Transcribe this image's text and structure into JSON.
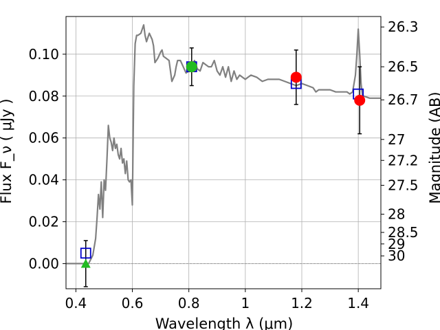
{
  "chart_data": {
    "type": "line",
    "xlabel": "Wavelength  λ (μm)",
    "ylabel": "Flux  F_ν  ( μJy )",
    "ylabel_right": "Magnitude (AB)",
    "xlim": [
      0.365,
      1.48
    ],
    "ylim": [
      -0.012,
      0.118
    ],
    "grid": true,
    "x_ticks": [
      0.4,
      0.6,
      0.8,
      1.0,
      1.2,
      1.4
    ],
    "x_tick_labels": [
      "0.4",
      "0.6",
      "0.8",
      "1",
      "1.2",
      "1.4"
    ],
    "y_ticks": [
      0.0,
      0.02,
      0.04,
      0.06,
      0.08,
      0.1
    ],
    "y_tick_labels": [
      "0.00",
      "0.02",
      "0.04",
      "0.06",
      "0.08",
      "0.10"
    ],
    "right_ticks": [
      {
        "label": "26.3",
        "flux": 0.113
      },
      {
        "label": "26.5",
        "flux": 0.094
      },
      {
        "label": "26.7",
        "flux": 0.0782
      },
      {
        "label": "27",
        "flux": 0.0593
      },
      {
        "label": "27.2",
        "flux": 0.0493
      },
      {
        "label": "27.5",
        "flux": 0.0374
      },
      {
        "label": "28",
        "flux": 0.0236
      },
      {
        "label": "28.5",
        "flux": 0.0149
      },
      {
        "label": "29",
        "flux": 0.0094
      },
      {
        "label": "30",
        "flux": 0.0037
      }
    ],
    "series": [
      {
        "kind": "spectrum",
        "color": "#808080",
        "x": [
          0.365,
          0.43,
          0.445,
          0.46,
          0.47,
          0.475,
          0.48,
          0.485,
          0.49,
          0.495,
          0.5,
          0.505,
          0.51,
          0.515,
          0.52,
          0.525,
          0.53,
          0.535,
          0.54,
          0.545,
          0.55,
          0.555,
          0.56,
          0.565,
          0.57,
          0.575,
          0.58,
          0.585,
          0.59,
          0.595,
          0.6,
          0.605,
          0.61,
          0.615,
          0.62,
          0.63,
          0.64,
          0.645,
          0.65,
          0.655,
          0.66,
          0.67,
          0.675,
          0.68,
          0.69,
          0.7,
          0.705,
          0.71,
          0.72,
          0.73,
          0.74,
          0.75,
          0.755,
          0.76,
          0.77,
          0.78,
          0.79,
          0.8,
          0.81,
          0.82,
          0.83,
          0.84,
          0.85,
          0.86,
          0.87,
          0.88,
          0.89,
          0.9,
          0.91,
          0.92,
          0.93,
          0.94,
          0.95,
          0.96,
          0.97,
          0.98,
          0.99,
          1.0,
          1.01,
          1.02,
          1.04,
          1.06,
          1.08,
          1.1,
          1.12,
          1.14,
          1.16,
          1.18,
          1.2,
          1.22,
          1.24,
          1.25,
          1.26,
          1.28,
          1.3,
          1.32,
          1.34,
          1.36,
          1.37,
          1.38,
          1.39,
          1.395,
          1.4,
          1.405,
          1.41,
          1.415,
          1.42,
          1.44,
          1.46,
          1.48
        ],
        "y": [
          0.0,
          0.0,
          0.0,
          0.004,
          0.012,
          0.022,
          0.033,
          0.026,
          0.039,
          0.022,
          0.04,
          0.035,
          0.05,
          0.066,
          0.06,
          0.058,
          0.054,
          0.06,
          0.055,
          0.057,
          0.052,
          0.05,
          0.055,
          0.048,
          0.05,
          0.043,
          0.049,
          0.04,
          0.039,
          0.04,
          0.028,
          0.085,
          0.105,
          0.109,
          0.109,
          0.11,
          0.114,
          0.109,
          0.106,
          0.108,
          0.11,
          0.107,
          0.104,
          0.096,
          0.098,
          0.101,
          0.102,
          0.099,
          0.098,
          0.097,
          0.087,
          0.09,
          0.094,
          0.097,
          0.097,
          0.094,
          0.091,
          0.092,
          0.094,
          0.097,
          0.093,
          0.092,
          0.096,
          0.095,
          0.094,
          0.094,
          0.097,
          0.092,
          0.09,
          0.094,
          0.089,
          0.094,
          0.087,
          0.092,
          0.088,
          0.09,
          0.089,
          0.088,
          0.089,
          0.09,
          0.089,
          0.087,
          0.088,
          0.088,
          0.088,
          0.087,
          0.086,
          0.085,
          0.086,
          0.085,
          0.084,
          0.082,
          0.083,
          0.083,
          0.083,
          0.082,
          0.082,
          0.082,
          0.081,
          0.082,
          0.09,
          0.1,
          0.112,
          0.1,
          0.086,
          0.08,
          0.08,
          0.079,
          0.079,
          0.079
        ]
      },
      {
        "kind": "model-photometry",
        "marker": "open-square",
        "color": "#0000cc",
        "x": [
          0.435,
          0.81,
          1.18,
          1.4
        ],
        "y": [
          0.005,
          0.094,
          0.086,
          0.081
        ]
      },
      {
        "kind": "observed",
        "marker": "filled-circle",
        "color": "#ff0000",
        "x": [
          0.81,
          1.18,
          1.405
        ],
        "y": [
          0.094,
          0.089,
          0.078
        ],
        "err": [
          0.009,
          0.013,
          0.016
        ]
      },
      {
        "kind": "observed-highlight",
        "marker": "filled-circle",
        "color": "#22bb22",
        "x": [
          0.81
        ],
        "y": [
          0.094
        ]
      },
      {
        "kind": "upper-limit",
        "marker": "filled-triangle",
        "color": "#22bb22",
        "x": [
          0.435
        ],
        "y": [
          0.0
        ],
        "err": [
          0.011
        ]
      }
    ]
  }
}
